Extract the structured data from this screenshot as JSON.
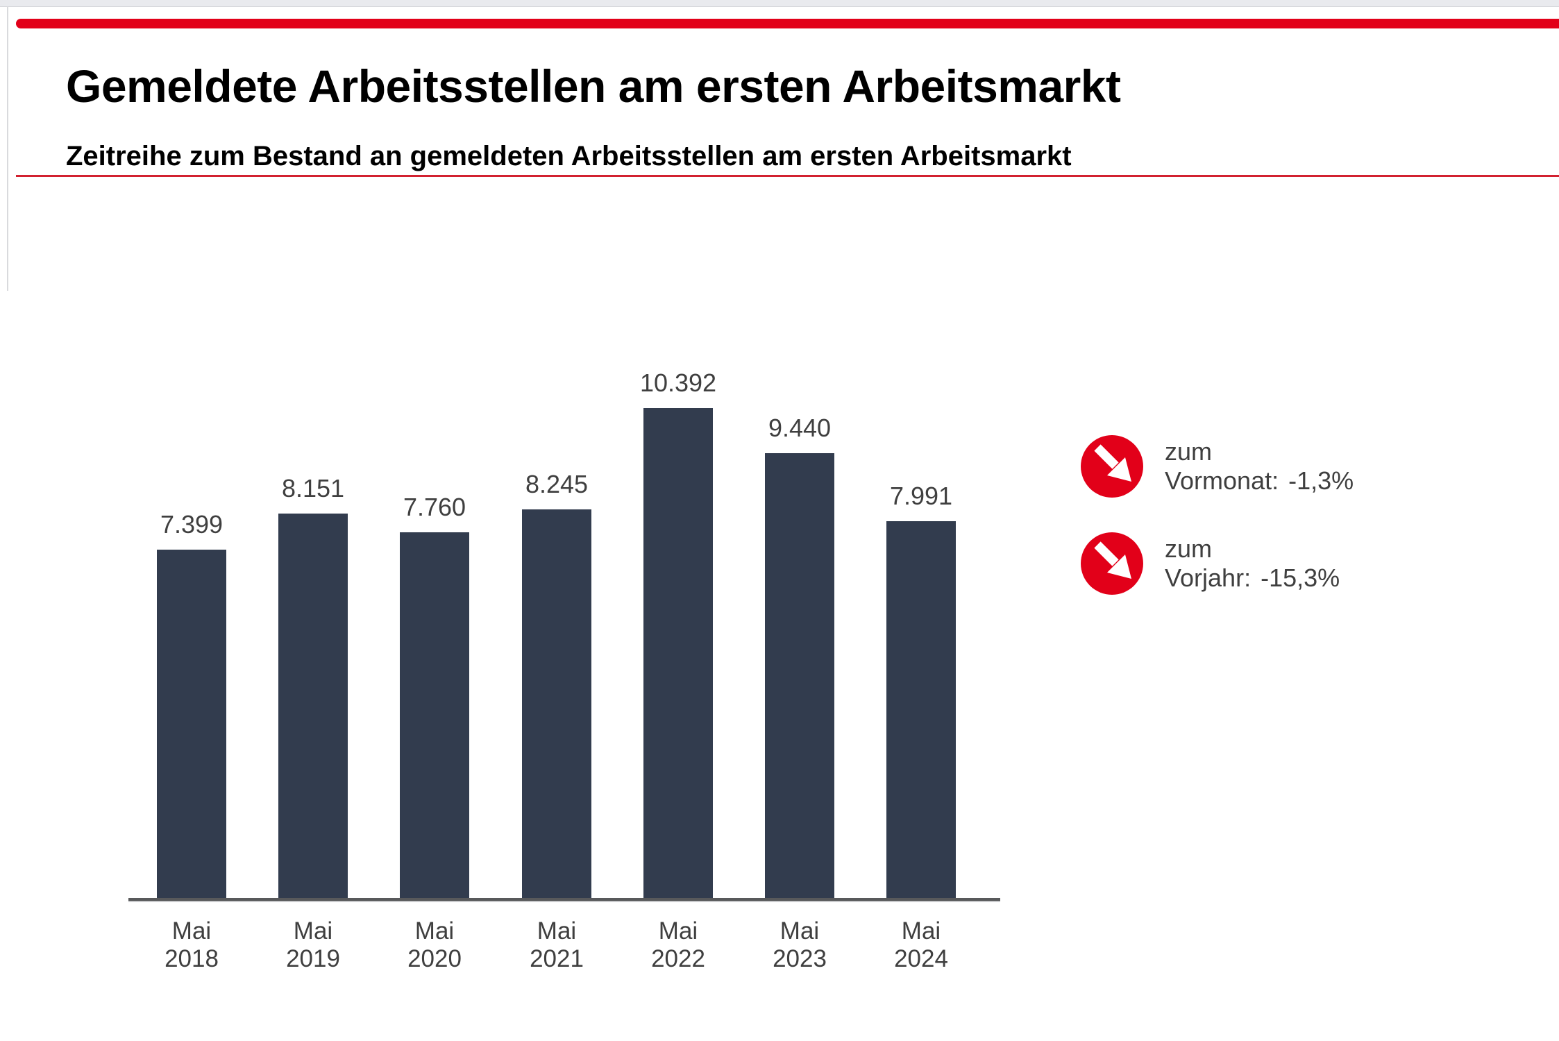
{
  "colors": {
    "accent_red": "#e20019",
    "divider_red": "#d22130",
    "bar_fill": "#323c4e",
    "title_text": "#000000",
    "label_gray": "#3f3f3f",
    "axis_gray": "#58595b"
  },
  "chart_data": {
    "type": "bar",
    "title": "Gemeldete Arbeitsstellen am ersten Arbeitsmarkt",
    "subtitle": "Zeitreihe zum Bestand an gemeldeten Arbeitsstellen am ersten Arbeitsmarkt",
    "categories": [
      "Mai 2018",
      "Mai 2019",
      "Mai 2020",
      "Mai 2021",
      "Mai 2022",
      "Mai 2023",
      "Mai 2024"
    ],
    "values": [
      7399,
      8151,
      7760,
      8245,
      10392,
      9440,
      7991
    ],
    "value_labels": [
      "7.399",
      "8.151",
      "7.760",
      "8.245",
      "10.392",
      "9.440",
      "7.991"
    ],
    "xlabel": "",
    "ylabel": "",
    "ylim": [
      0,
      10392
    ],
    "grid": false,
    "legend": "none",
    "bar_color": "#323c4e",
    "label_color": "#3f3f3f"
  },
  "kpis": [
    {
      "icon": "arrow-down-right",
      "line1": "zum",
      "label": "Vormonat:",
      "value": "-1,3%"
    },
    {
      "icon": "arrow-down-right",
      "line1": "zum",
      "label": "Vorjahr:",
      "value": "-15,3%"
    }
  ]
}
